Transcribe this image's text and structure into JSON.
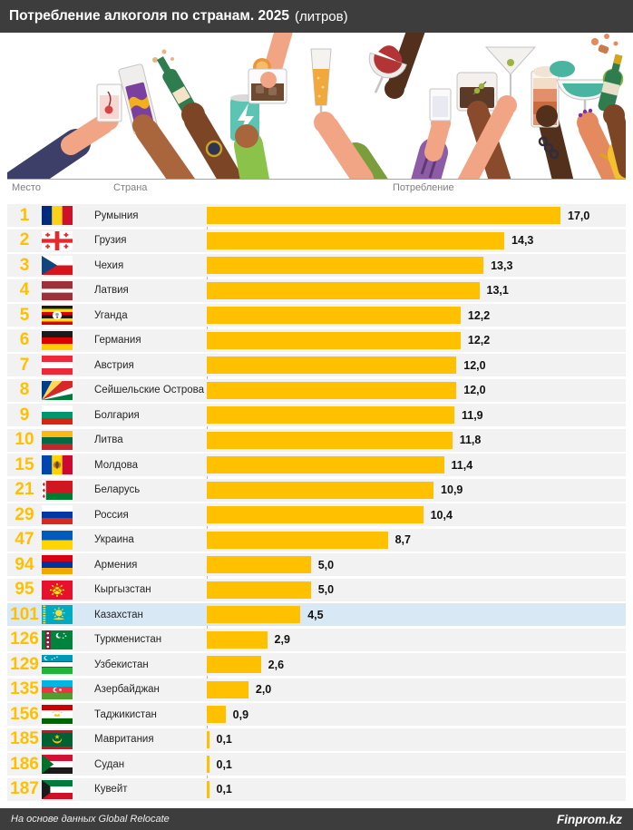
{
  "title": {
    "main": "Потребление алкоголя по странам. 2025",
    "unit": "(литров)"
  },
  "columns": {
    "rank": "Место",
    "country": "Страна",
    "consumption": "Потребление"
  },
  "footer": {
    "source": "На основе данных Global Relocate",
    "brand": "Finprom.kz"
  },
  "colors": {
    "accent_gold": "#FFC000",
    "bar_fill": "#FFC000",
    "header_bg": "#3D3D3D",
    "row_bg": "#F2F2F2",
    "highlight_row_bg": "#D9E8F5"
  },
  "rows": [
    {
      "rank": "1",
      "country": "Румыния",
      "value": 17.0,
      "label": "17,0",
      "flag": "romania",
      "highlight": false
    },
    {
      "rank": "2",
      "country": "Грузия",
      "value": 14.3,
      "label": "14,3",
      "flag": "georgia",
      "highlight": false
    },
    {
      "rank": "3",
      "country": "Чехия",
      "value": 13.3,
      "label": "13,3",
      "flag": "czechia",
      "highlight": false
    },
    {
      "rank": "4",
      "country": "Латвия",
      "value": 13.1,
      "label": "13,1",
      "flag": "latvia",
      "highlight": false
    },
    {
      "rank": "5",
      "country": "Уганда",
      "value": 12.2,
      "label": "12,2",
      "flag": "uganda",
      "highlight": false
    },
    {
      "rank": "6",
      "country": "Германия",
      "value": 12.2,
      "label": "12,2",
      "flag": "germany",
      "highlight": false
    },
    {
      "rank": "7",
      "country": "Австрия",
      "value": 12.0,
      "label": "12,0",
      "flag": "austria",
      "highlight": false
    },
    {
      "rank": "8",
      "country": "Сейшельские Острова",
      "value": 12.0,
      "label": "12,0",
      "flag": "seychelles",
      "highlight": false
    },
    {
      "rank": "9",
      "country": "Болгария",
      "value": 11.9,
      "label": "11,9",
      "flag": "bulgaria",
      "highlight": false
    },
    {
      "rank": "10",
      "country": "Литва",
      "value": 11.8,
      "label": "11,8",
      "flag": "lithuania",
      "highlight": false
    },
    {
      "rank": "15",
      "country": "Молдова",
      "value": 11.4,
      "label": "11,4",
      "flag": "moldova",
      "highlight": false
    },
    {
      "rank": "21",
      "country": "Беларусь",
      "value": 10.9,
      "label": "10,9",
      "flag": "belarus",
      "highlight": false
    },
    {
      "rank": "29",
      "country": "Россия",
      "value": 10.4,
      "label": "10,4",
      "flag": "russia",
      "highlight": false
    },
    {
      "rank": "47",
      "country": "Украина",
      "value": 8.7,
      "label": "8,7",
      "flag": "ukraine",
      "highlight": false
    },
    {
      "rank": "94",
      "country": "Армения",
      "value": 5.0,
      "label": "5,0",
      "flag": "armenia",
      "highlight": false
    },
    {
      "rank": "95",
      "country": "Кыргызстан",
      "value": 5.0,
      "label": "5,0",
      "flag": "kyrgyzstan",
      "highlight": false
    },
    {
      "rank": "101",
      "country": "Казахстан",
      "value": 4.5,
      "label": "4,5",
      "flag": "kazakhstan",
      "highlight": true
    },
    {
      "rank": "126",
      "country": "Туркменистан",
      "value": 2.9,
      "label": "2,9",
      "flag": "turkmenistan",
      "highlight": false
    },
    {
      "rank": "129",
      "country": "Узбекистан",
      "value": 2.6,
      "label": "2,6",
      "flag": "uzbekistan",
      "highlight": false
    },
    {
      "rank": "135",
      "country": "Азербайджан",
      "value": 2.0,
      "label": "2,0",
      "flag": "azerbaijan",
      "highlight": false
    },
    {
      "rank": "156",
      "country": "Таджикистан",
      "value": 0.9,
      "label": "0,9",
      "flag": "tajikistan",
      "highlight": false
    },
    {
      "rank": "185",
      "country": "Мавритания",
      "value": 0.1,
      "label": "0,1",
      "flag": "mauritania",
      "highlight": false
    },
    {
      "rank": "186",
      "country": "Судан",
      "value": 0.1,
      "label": "0,1",
      "flag": "sudan",
      "highlight": false
    },
    {
      "rank": "187",
      "country": "Кувейт",
      "value": 0.1,
      "label": "0,1",
      "flag": "kuwait",
      "highlight": false
    }
  ],
  "chart_data": {
    "type": "bar",
    "orientation": "horizontal",
    "title": "Потребление алкоголя по странам. 2025 (литров)",
    "unit": "литров",
    "categories": [
      "Румыния",
      "Грузия",
      "Чехия",
      "Латвия",
      "Уганда",
      "Германия",
      "Австрия",
      "Сейшельские Острова",
      "Болгария",
      "Литва",
      "Молдова",
      "Беларусь",
      "Россия",
      "Украина",
      "Армения",
      "Кыргызстан",
      "Казахстан",
      "Туркменистан",
      "Узбекистан",
      "Азербайджан",
      "Таджикистан",
      "Мавритания",
      "Судан",
      "Кувейт"
    ],
    "values": [
      17.0,
      14.3,
      13.3,
      13.1,
      12.2,
      12.2,
      12.0,
      12.0,
      11.9,
      11.8,
      11.4,
      10.9,
      10.4,
      8.7,
      5.0,
      5.0,
      4.5,
      2.9,
      2.6,
      2.0,
      0.9,
      0.1,
      0.1,
      0.1
    ],
    "ranks": [
      1,
      2,
      3,
      4,
      5,
      6,
      7,
      8,
      9,
      10,
      15,
      21,
      29,
      47,
      94,
      95,
      101,
      126,
      129,
      135,
      156,
      185,
      186,
      187
    ],
    "highlighted_category": "Казахстан",
    "xlim": [
      0,
      17
    ],
    "grid": false,
    "legend": false,
    "source": "На основе данных Global Relocate"
  }
}
